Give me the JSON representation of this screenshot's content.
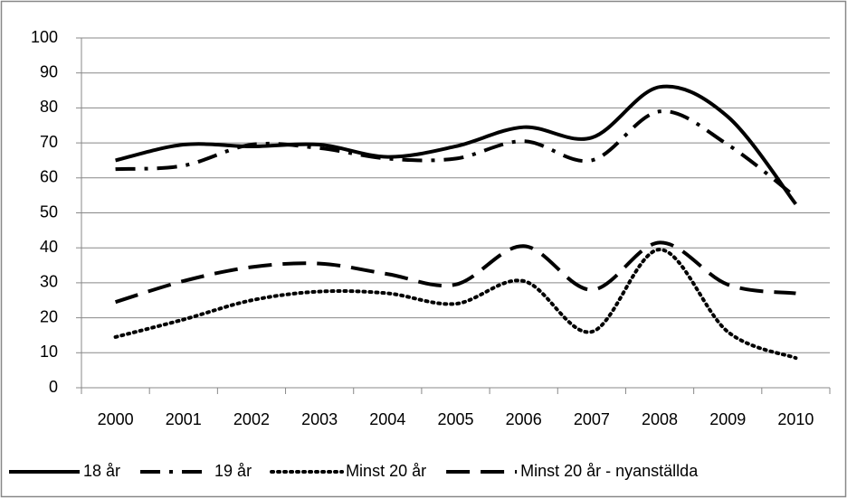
{
  "chart_data": {
    "type": "line",
    "smooth": true,
    "grid": true,
    "legend": "bottom",
    "categories": [
      "2000",
      "2001",
      "2002",
      "2003",
      "2004",
      "2005",
      "2006",
      "2007",
      "2008",
      "2009",
      "2010"
    ],
    "series": [
      {
        "name": "18 år",
        "color": "#000000",
        "dash": "solid",
        "values": [
          65,
          69.5,
          69,
          69.5,
          66,
          69,
          74.5,
          71.5,
          86,
          77.5,
          52.5
        ]
      },
      {
        "name": "19 år",
        "color": "#000000",
        "dash": "dashdot",
        "values": [
          62.5,
          63.5,
          69.5,
          68.5,
          65.5,
          65.5,
          70.5,
          65,
          79,
          69.5,
          54.5
        ]
      },
      {
        "name": "Minst 20 år",
        "color": "#000000",
        "dash": "dotted",
        "values": [
          14.5,
          19.5,
          25,
          27.5,
          27,
          24,
          30.5,
          16,
          39.5,
          16,
          8.5
        ]
      },
      {
        "name": "Minst 20 år - nyanställda",
        "color": "#000000",
        "dash": "dashed",
        "values": [
          24.5,
          30.5,
          34.5,
          35.5,
          32.5,
          29.5,
          40.5,
          28,
          41.5,
          29.5,
          27
        ]
      }
    ],
    "ylim": [
      0,
      100
    ],
    "yticks": [
      0,
      10,
      20,
      30,
      40,
      50,
      60,
      70,
      80,
      90,
      100
    ]
  }
}
